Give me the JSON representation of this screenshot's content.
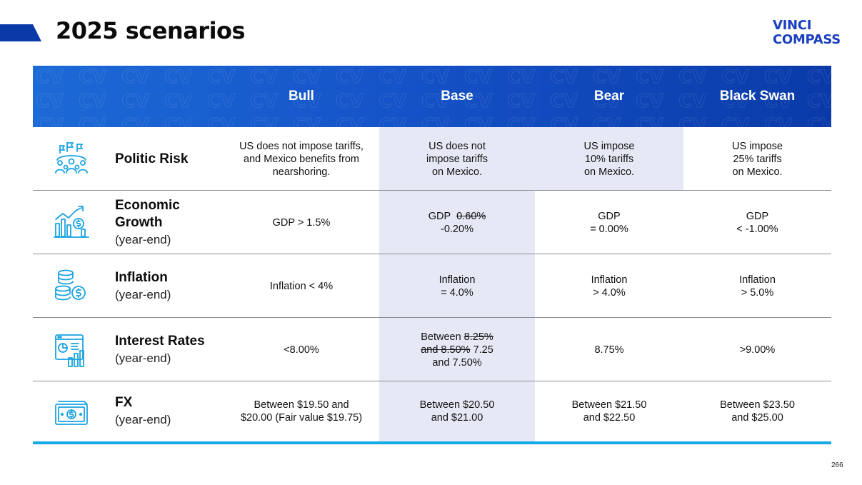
{
  "title": "2025 scenarios",
  "logo": {
    "line1": "VINCI",
    "line2": "COMPASS"
  },
  "page_number": "266",
  "colors": {
    "header_band": "#1553c8",
    "accent": "#0a3aa8",
    "base_shade": "#e6e9f5",
    "bottom_rule": "#13a8e6",
    "icon": "#1aa3e0",
    "logo": "#1a3fbf"
  },
  "columns": [
    "Bull",
    "Base",
    "Bear",
    "Black Swan"
  ],
  "rows": [
    {
      "icon": "crowd-flags-icon",
      "label": "Politic Risk",
      "sublabel": "",
      "bull": "US does not impose tariffs, and Mexico benefits from nearshoring.",
      "base": {
        "lines": [
          "US does not",
          "impose tariffs",
          "on Mexico."
        ]
      },
      "bear": {
        "lines": [
          "US impose",
          "10% tariffs",
          "on Mexico."
        ]
      },
      "black_swan": {
        "lines": [
          "US impose",
          "25% tariffs",
          "on Mexico."
        ]
      }
    },
    {
      "icon": "growth-chart-icon",
      "label": "Economic Growth",
      "sublabel": "(year-end)",
      "bull": "GDP > 1.5%",
      "base": {
        "prefix": "GDP",
        "struck": "0.60%",
        "value": "-0.20%"
      },
      "bear": {
        "lines": [
          "GDP",
          "= 0.00%"
        ]
      },
      "black_swan": {
        "lines": [
          "GDP",
          "< -1.00%"
        ]
      }
    },
    {
      "icon": "coin-stack-icon",
      "label": "Inflation",
      "sublabel": "(year-end)",
      "bull": "Inflation < 4%",
      "base": {
        "lines": [
          "Inflation",
          "= 4.0%"
        ]
      },
      "bear": {
        "lines": [
          "Inflation",
          "> 4.0%"
        ]
      },
      "black_swan": {
        "lines": [
          "Inflation",
          "> 5.0%"
        ]
      }
    },
    {
      "icon": "dashboard-report-icon",
      "label": "Interest Rates",
      "sublabel": "(year-end)",
      "bull": "<8.00%",
      "base": {
        "prefix": "Between",
        "struck1": "8.25%",
        "struck2": "and 8.50%",
        "value1": "7.25",
        "value2": "and 7.50%"
      },
      "bear": "8.75%",
      "black_swan": ">9.00%"
    },
    {
      "icon": "banknote-icon",
      "label": "FX",
      "sublabel": "(year-end)",
      "bull": {
        "lines": [
          "Between $19.50 and",
          "$20.00 (Fair value $19.75)"
        ]
      },
      "base": {
        "lines": [
          "Between $20.50",
          "and $21.00"
        ]
      },
      "bear": {
        "lines": [
          "Between $21.50",
          "and $22.50"
        ]
      },
      "black_swan": {
        "lines": [
          "Between $23.50",
          "and $25.00"
        ]
      }
    }
  ]
}
